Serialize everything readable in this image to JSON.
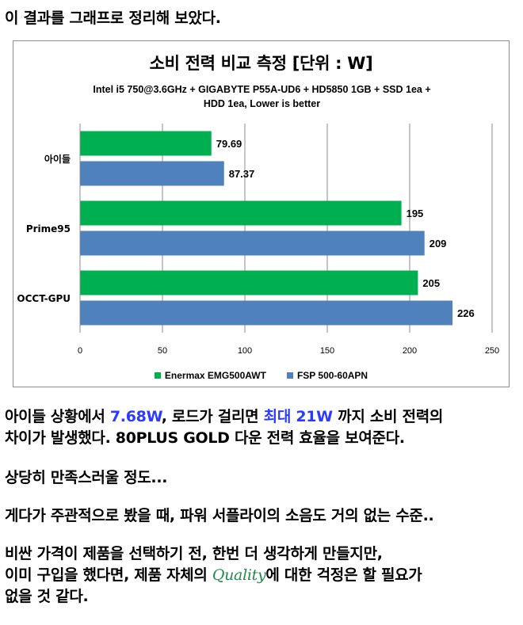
{
  "intro": "이 결과를 그래프로 정리해 보았다.",
  "chart_data": {
    "type": "bar",
    "orientation": "horizontal",
    "title": "소비 전력 비교 측정 [단위 : W]",
    "subtitle_lines": [
      "Intel i5 750@3.6GHz + GIGABYTE P55A-UD6 + HD5850 1GB + SSD 1ea +",
      "HDD 1ea, Lower is better"
    ],
    "categories": [
      "아이들",
      "Prime95",
      "OCCT-GPU"
    ],
    "series": [
      {
        "name": "Enermax EMG500AWT",
        "values": [
          79.69,
          195,
          205
        ],
        "labels": [
          "79.69",
          "195",
          "205"
        ],
        "color": "#00b050"
      },
      {
        "name": "FSP 500-60APN",
        "values": [
          87.37,
          209,
          226
        ],
        "labels": [
          "87.37",
          "209",
          "226"
        ],
        "color": "#4f81bd"
      }
    ],
    "xlim": [
      0,
      250
    ],
    "xticks": [
      "0",
      "50",
      "100",
      "150",
      "200",
      "250"
    ],
    "grid": true,
    "legend_position": "bottom"
  },
  "paragraphs": {
    "p1_a": "아이들 상황에서 ",
    "p1_b": "7.68W",
    "p1_c": ", 로드가 걸리면 ",
    "p1_d": "최대",
    "p1_e": " 21W",
    "p1_f": " 까지 소비 전력의",
    "p1_line2": "차이가 발생했다. 80PLUS GOLD 다운 전력 효율을 보여준다.",
    "p2": "상당히 만족스러울 정도...",
    "p3": "게다가 주관적으로 봤을 때, 파워 서플라이의 소음도 거의 없는 수준..",
    "p4_line1": "비싼 가격이 제품을 선택하기 전, 한번 더 생각하게 만들지만,",
    "p4_line2a": "이미 구입을 했다면, 제품 자체의 ",
    "p4_quality": "Quality",
    "p4_line2b": "에 대한 걱정은 할 필요가",
    "p4_line3": "없을 것 같다."
  }
}
